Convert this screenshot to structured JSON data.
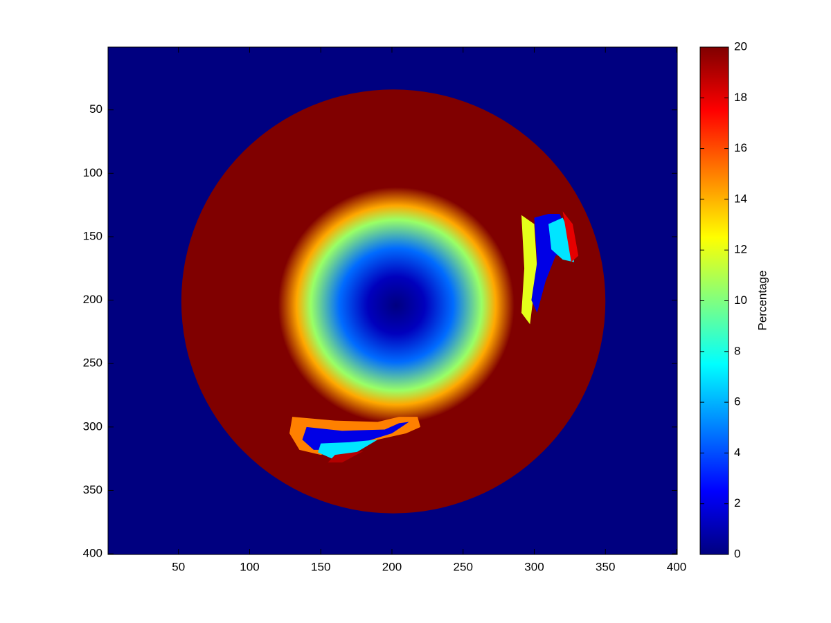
{
  "chart_data": {
    "type": "image",
    "colormap": "jet",
    "clim": [
      0,
      20
    ],
    "xlim": [
      0.5,
      400.5
    ],
    "ylim": [
      0.5,
      400.5
    ],
    "y_reversed": true,
    "xticks": [
      50,
      100,
      150,
      200,
      250,
      300,
      350,
      400
    ],
    "yticks": [
      50,
      100,
      150,
      200,
      250,
      300,
      350,
      400
    ],
    "colorbar": {
      "label": "Percentage",
      "ticks": [
        0,
        2,
        4,
        6,
        8,
        10,
        12,
        14,
        16,
        18,
        20
      ]
    },
    "background": 0,
    "disks": [
      {
        "cx": 201,
        "cy": 201,
        "r": 149,
        "value": 20
      }
    ],
    "radial": {
      "cx": 203,
      "cy": 204,
      "r": [
        0,
        20,
        40,
        60,
        70,
        83
      ],
      "values": [
        0,
        1.2,
        4.6,
        10.5,
        14.2,
        20
      ]
    },
    "patches": [
      {
        "value": 12,
        "points": [
          [
            291,
            133
          ],
          [
            300,
            140
          ],
          [
            302,
            175
          ],
          [
            298,
            210
          ],
          [
            297,
            219
          ],
          [
            291,
            210
          ],
          [
            293,
            175
          ]
        ]
      },
      {
        "value": 2,
        "points": [
          [
            300,
            135
          ],
          [
            310,
            132
          ],
          [
            318,
            132
          ],
          [
            322,
            145
          ],
          [
            325,
            160
          ],
          [
            315,
            165
          ],
          [
            308,
            185
          ],
          [
            302,
            210
          ],
          [
            298,
            200
          ],
          [
            302,
            170
          ]
        ]
      },
      {
        "value": 7,
        "points": [
          [
            310,
            140
          ],
          [
            320,
            135
          ],
          [
            326,
            150
          ],
          [
            328,
            170
          ],
          [
            320,
            168
          ],
          [
            312,
            160
          ]
        ]
      },
      {
        "value": 18,
        "points": [
          [
            320,
            130
          ],
          [
            327,
            140
          ],
          [
            331,
            165
          ],
          [
            326,
            170
          ]
        ]
      },
      {
        "value": 15,
        "points": [
          [
            130,
            292
          ],
          [
            160,
            295
          ],
          [
            190,
            296
          ],
          [
            205,
            292
          ],
          [
            218,
            292
          ],
          [
            220,
            300
          ],
          [
            210,
            305
          ],
          [
            190,
            310
          ],
          [
            170,
            315
          ],
          [
            150,
            322
          ],
          [
            135,
            318
          ],
          [
            128,
            305
          ]
        ]
      },
      {
        "value": 2,
        "points": [
          [
            140,
            300
          ],
          [
            165,
            303
          ],
          [
            195,
            302
          ],
          [
            205,
            297
          ],
          [
            212,
            296
          ],
          [
            200,
            305
          ],
          [
            180,
            312
          ],
          [
            160,
            318
          ],
          [
            145,
            318
          ],
          [
            137,
            310
          ]
        ]
      },
      {
        "value": 7,
        "points": [
          [
            150,
            313
          ],
          [
            170,
            312
          ],
          [
            190,
            310
          ],
          [
            175,
            320
          ],
          [
            160,
            326
          ],
          [
            148,
            320
          ]
        ]
      },
      {
        "value": 19,
        "points": [
          [
            160,
            322
          ],
          [
            180,
            319
          ],
          [
            165,
            328
          ],
          [
            155,
            328
          ]
        ]
      }
    ]
  }
}
